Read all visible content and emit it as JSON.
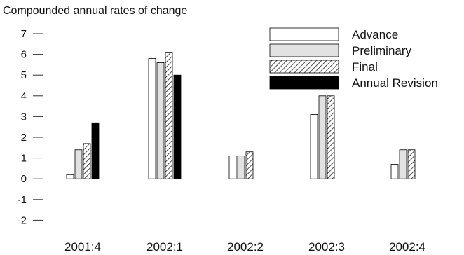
{
  "chart_data": {
    "type": "bar",
    "title": "",
    "ylabel": "Compounded annual rates of change",
    "xlabel": "",
    "categories": [
      "2001:4",
      "2002:1",
      "2002:2",
      "2002:3",
      "2002:4"
    ],
    "ylim": [
      -2,
      7
    ],
    "yticks": [
      7,
      6,
      5,
      4,
      3,
      2,
      1,
      0,
      -1,
      -2
    ],
    "grid": false,
    "legend_position": "top-right",
    "series": [
      {
        "name": "Advance",
        "style": "white",
        "values": [
          0.2,
          5.8,
          1.1,
          3.1,
          0.7
        ]
      },
      {
        "name": "Preliminary",
        "style": "lightgray",
        "values": [
          1.4,
          5.6,
          1.1,
          4.0,
          1.4
        ]
      },
      {
        "name": "Final",
        "style": "hatched",
        "values": [
          1.7,
          6.1,
          1.3,
          4.0,
          1.4
        ]
      },
      {
        "name": "Annual Revision",
        "style": "black",
        "values": [
          2.7,
          5.0,
          null,
          null,
          null
        ]
      }
    ]
  },
  "colors": {
    "axis": "#333333",
    "text": "#111111",
    "white_fill": "#ffffff",
    "gray_fill": "#e2e2e2",
    "black_fill": "#000000",
    "hatch_line": "#222222"
  }
}
